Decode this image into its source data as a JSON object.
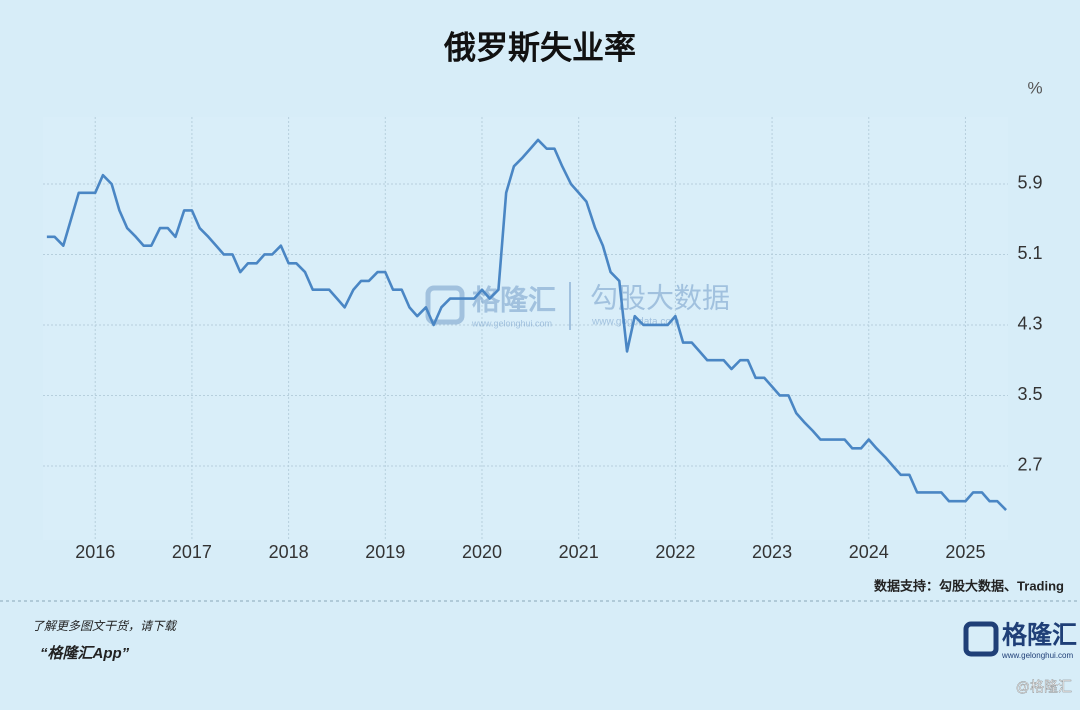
{
  "chart_data": {
    "type": "line",
    "title": "俄罗斯失业率",
    "y_label": "%",
    "source": "数据支持：勾股大数据、Trading",
    "color": "#4a86c4",
    "grid": true,
    "xlim": [
      2015.46,
      2025.44
    ],
    "ylim": [
      1.86,
      6.66
    ],
    "xticks": [
      2016,
      2017,
      2018,
      2019,
      2020,
      2021,
      2022,
      2023,
      2024,
      2025
    ],
    "yticks": [
      5.9,
      5.1,
      4.3,
      3.5,
      2.7
    ],
    "x": [
      2015.5,
      2015.58,
      2015.67,
      2015.75,
      2015.83,
      2015.92,
      2016,
      2016.08,
      2016.17,
      2016.25,
      2016.33,
      2016.42,
      2016.5,
      2016.58,
      2016.67,
      2016.75,
      2016.83,
      2016.92,
      2017,
      2017.08,
      2017.17,
      2017.25,
      2017.33,
      2017.42,
      2017.5,
      2017.58,
      2017.67,
      2017.75,
      2017.83,
      2017.92,
      2018,
      2018.08,
      2018.17,
      2018.25,
      2018.33,
      2018.42,
      2018.5,
      2018.58,
      2018.67,
      2018.75,
      2018.83,
      2018.92,
      2019,
      2019.08,
      2019.17,
      2019.25,
      2019.33,
      2019.42,
      2019.5,
      2019.58,
      2019.67,
      2019.75,
      2019.83,
      2019.92,
      2020,
      2020.08,
      2020.17,
      2020.25,
      2020.33,
      2020.42,
      2020.5,
      2020.58,
      2020.67,
      2020.75,
      2020.83,
      2020.92,
      2021,
      2021.08,
      2021.17,
      2021.25,
      2021.33,
      2021.42,
      2021.5,
      2021.58,
      2021.67,
      2021.75,
      2021.83,
      2021.92,
      2022,
      2022.08,
      2022.17,
      2022.25,
      2022.33,
      2022.42,
      2022.5,
      2022.58,
      2022.67,
      2022.75,
      2022.83,
      2022.92,
      2023,
      2023.08,
      2023.17,
      2023.25,
      2023.33,
      2023.42,
      2023.5,
      2023.58,
      2023.67,
      2023.75,
      2023.83,
      2023.92,
      2024,
      2024.08,
      2024.17,
      2024.25,
      2024.33,
      2024.42,
      2024.5,
      2024.58,
      2024.67,
      2024.75,
      2024.83,
      2024.92,
      2025,
      2025.08,
      2025.17,
      2025.25,
      2025.33,
      2025.42
    ],
    "values": [
      5.3,
      5.3,
      5.2,
      5.5,
      5.8,
      5.8,
      5.8,
      6.0,
      5.9,
      5.6,
      5.4,
      5.3,
      5.2,
      5.2,
      5.4,
      5.4,
      5.3,
      5.6,
      5.6,
      5.4,
      5.3,
      5.2,
      5.1,
      5.1,
      4.9,
      5.0,
      5.0,
      5.1,
      5.1,
      5.2,
      5.0,
      5.0,
      4.9,
      4.7,
      4.7,
      4.7,
      4.6,
      4.5,
      4.7,
      4.8,
      4.8,
      4.9,
      4.9,
      4.7,
      4.7,
      4.5,
      4.4,
      4.5,
      4.3,
      4.5,
      4.6,
      4.6,
      4.6,
      4.6,
      4.7,
      4.6,
      4.7,
      5.8,
      6.1,
      6.2,
      6.3,
      6.4,
      6.3,
      6.3,
      6.1,
      5.9,
      5.8,
      5.7,
      5.4,
      5.2,
      4.9,
      4.8,
      4.0,
      4.4,
      4.3,
      4.3,
      4.3,
      4.3,
      4.4,
      4.1,
      4.1,
      4.0,
      3.9,
      3.9,
      3.9,
      3.8,
      3.9,
      3.9,
      3.7,
      3.7,
      3.6,
      3.5,
      3.5,
      3.3,
      3.2,
      3.1,
      3.0,
      3.0,
      3.0,
      3.0,
      2.9,
      2.9,
      3.0,
      2.9,
      2.8,
      2.7,
      2.6,
      2.6,
      2.4,
      2.4,
      2.4,
      2.4,
      2.3,
      2.3,
      2.3,
      2.4,
      2.4,
      2.3,
      2.3,
      2.2
    ]
  },
  "watermark": {
    "brand": "格隆汇",
    "brand_url": "www.gelonghui.com",
    "partner": "勾股大数据",
    "partner_url": "www.gogudata.com"
  },
  "footer": {
    "prompt": "了解更多图文干货，请下载",
    "app": "“格隆汇App”",
    "logo": "格隆汇",
    "logo_url": "www.gelonghui.com",
    "handle": "@格隆汇"
  }
}
